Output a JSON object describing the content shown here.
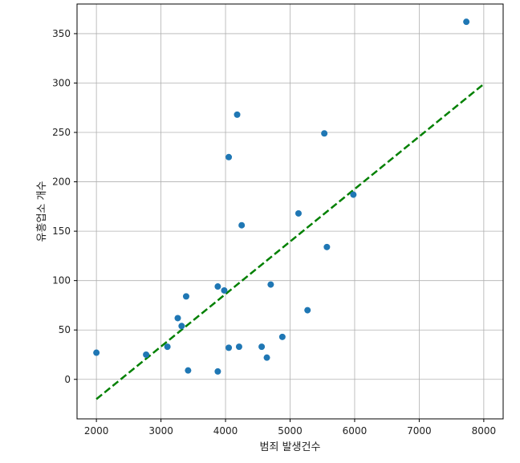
{
  "chart_data": {
    "type": "scatter",
    "title": "",
    "xlabel": "범죄 발생건수",
    "ylabel": "유흥업소 개수",
    "xlim": [
      1700,
      8300
    ],
    "ylim": [
      -40,
      380
    ],
    "xticks": [
      2000,
      3000,
      4000,
      5000,
      6000,
      7000,
      8000
    ],
    "yticks": [
      0,
      50,
      100,
      150,
      200,
      250,
      300,
      350
    ],
    "xtick_labels": [
      "2000",
      "3000",
      "4000",
      "5000",
      "6000",
      "7000",
      "8000"
    ],
    "ytick_labels": [
      "0",
      "50",
      "100",
      "150",
      "200",
      "250",
      "300",
      "350"
    ],
    "grid": true,
    "points": [
      {
        "x": 2000,
        "y": 27
      },
      {
        "x": 2770,
        "y": 25
      },
      {
        "x": 3100,
        "y": 33
      },
      {
        "x": 3260,
        "y": 62
      },
      {
        "x": 3320,
        "y": 54
      },
      {
        "x": 3390,
        "y": 84
      },
      {
        "x": 3420,
        "y": 9
      },
      {
        "x": 3880,
        "y": 94
      },
      {
        "x": 3880,
        "y": 8
      },
      {
        "x": 3980,
        "y": 90
      },
      {
        "x": 4050,
        "y": 225
      },
      {
        "x": 4050,
        "y": 32
      },
      {
        "x": 4180,
        "y": 268
      },
      {
        "x": 4210,
        "y": 33
      },
      {
        "x": 4250,
        "y": 156
      },
      {
        "x": 4560,
        "y": 33
      },
      {
        "x": 4640,
        "y": 22
      },
      {
        "x": 4700,
        "y": 96
      },
      {
        "x": 4880,
        "y": 43
      },
      {
        "x": 5130,
        "y": 168
      },
      {
        "x": 5270,
        "y": 70
      },
      {
        "x": 5530,
        "y": 249
      },
      {
        "x": 5570,
        "y": 134
      },
      {
        "x": 5980,
        "y": 187
      },
      {
        "x": 7730,
        "y": 362
      }
    ],
    "trendline": {
      "x": [
        2000,
        8000
      ],
      "y": [
        -20,
        299
      ],
      "style": "dashed",
      "color": "#008000"
    },
    "point_color": "#1f77b4"
  }
}
